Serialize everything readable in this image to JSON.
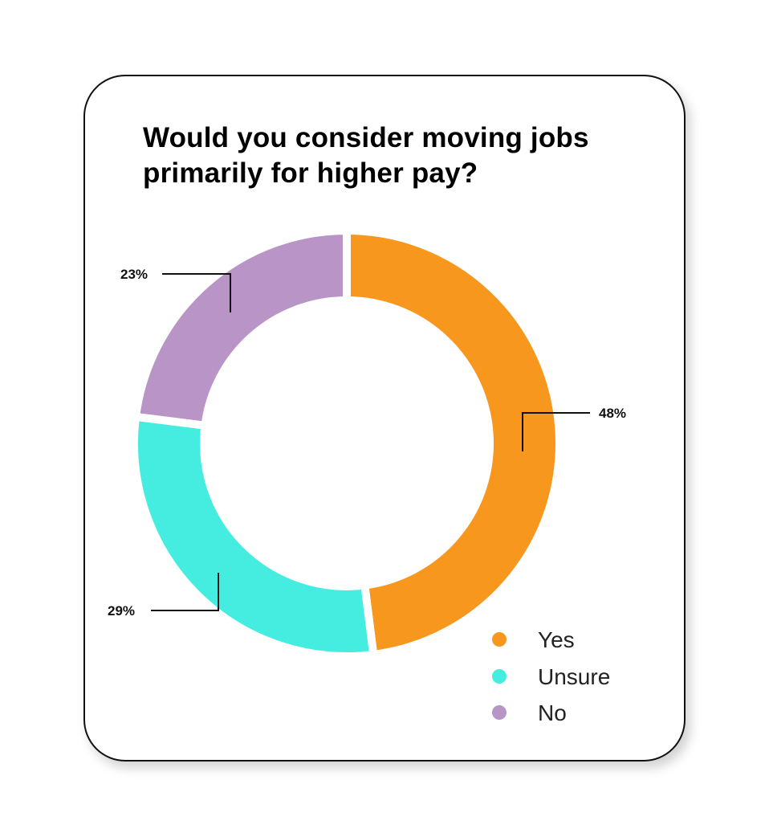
{
  "chart_data": {
    "type": "pie",
    "variant": "donut",
    "title": "Would you consider moving jobs primarily for higher pay?",
    "title_lines": [
      "Would you consider moving jobs",
      "primarily for higher pay?"
    ],
    "categories": [
      "Yes",
      "Unsure",
      "No"
    ],
    "values": [
      48,
      29,
      23
    ],
    "labels": [
      "48%",
      "29%",
      "23%"
    ],
    "colors": [
      "#F7971E",
      "#45EDE0",
      "#B994C6"
    ],
    "legend": "bottom-right"
  }
}
